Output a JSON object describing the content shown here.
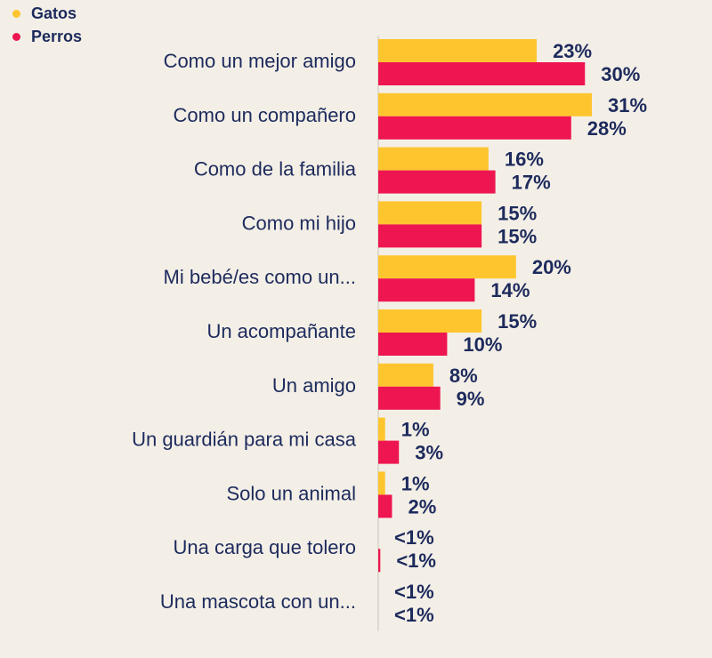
{
  "legend": [
    {
      "name": "Gatos",
      "color": "#fec52e"
    },
    {
      "name": "Perros",
      "color": "#ee1650"
    }
  ],
  "chart_data": {
    "type": "bar",
    "orientation": "horizontal",
    "categories": [
      "Como un mejor amigo",
      "Como un compañero",
      "Como de la familia",
      "Como mi hijo",
      "Mi bebé/es como un...",
      "Un acompañante",
      "Un amigo",
      "Un guardián para mi casa",
      "Solo un animal",
      "Una carga que tolero",
      "Una mascota con un..."
    ],
    "series": [
      {
        "name": "Gatos",
        "color": "#fec52e",
        "values": [
          23,
          31,
          16,
          15,
          20,
          15,
          8,
          1,
          1,
          0,
          0
        ],
        "labels": [
          "23%",
          "31%",
          "16%",
          "15%",
          "20%",
          "15%",
          "8%",
          "1%",
          "1%",
          "<1%",
          "<1%"
        ]
      },
      {
        "name": "Perros",
        "color": "#ee1650",
        "values": [
          30,
          28,
          17,
          15,
          14,
          10,
          9,
          3,
          2,
          0.3,
          0
        ],
        "labels": [
          "30%",
          "28%",
          "17%",
          "15%",
          "14%",
          "10%",
          "9%",
          "3%",
          "2%",
          "<1%",
          "<1%"
        ]
      }
    ],
    "xlim": [
      0,
      31
    ],
    "grid": false,
    "legend_position": "top-left"
  }
}
